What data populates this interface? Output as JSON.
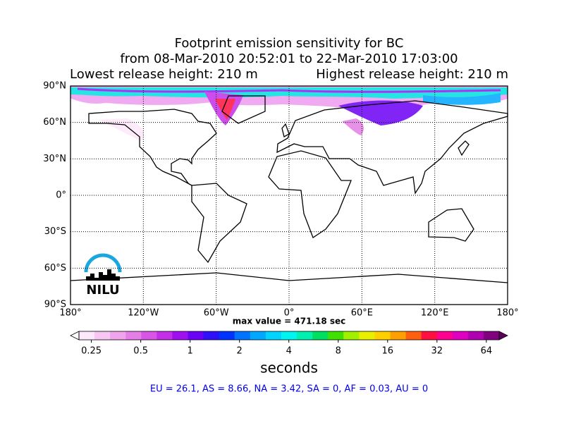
{
  "header": {
    "title": "Footprint emission sensitivity for BC",
    "period": "from 08-Mar-2010 20:52:01 to 22-Mar-2010 17:03:00",
    "lowest": "Lowest release height: 210 m",
    "highest": "Highest release height: 210 m"
  },
  "map": {
    "lat_lim": [
      -90,
      90
    ],
    "lon_lim": [
      -180,
      180
    ],
    "grid": true,
    "lat_ticks": [
      {
        "value": 90,
        "label": "90°N"
      },
      {
        "value": 60,
        "label": "60°N"
      },
      {
        "value": 30,
        "label": "30°N"
      },
      {
        "value": 0,
        "label": "0°"
      },
      {
        "value": -30,
        "label": "30°S"
      },
      {
        "value": -60,
        "label": "60°S"
      },
      {
        "value": -90,
        "label": "90°S"
      }
    ],
    "lon_ticks": [
      {
        "value": -180,
        "label": "180°"
      },
      {
        "value": -120,
        "label": "120°W"
      },
      {
        "value": -60,
        "label": "60°W"
      },
      {
        "value": 0,
        "label": "0°"
      },
      {
        "value": 60,
        "label": "60°E"
      },
      {
        "value": 120,
        "label": "120°E"
      },
      {
        "value": 180,
        "label": "180°"
      }
    ],
    "logo": "NILU",
    "max_value": "max value = 471.18 sec"
  },
  "colorbar": {
    "log": true,
    "lim": [
      0.21,
      76.6
    ],
    "ticks": [
      0.25,
      0.5,
      1,
      2,
      4,
      8,
      16,
      32,
      64
    ],
    "label": "seconds",
    "under_color": "#ffffff",
    "over_color": "#5c005c",
    "colors": [
      "#fde8fb",
      "#f7c6f2",
      "#f0a4ec",
      "#e57ee6",
      "#d756e6",
      "#c42ee8",
      "#9f10f0",
      "#6a00f5",
      "#2f10f8",
      "#0033ff",
      "#0073ff",
      "#00a8ff",
      "#00d4ff",
      "#00f5f0",
      "#00f0b0",
      "#00e060",
      "#40e000",
      "#a0f000",
      "#e8f000",
      "#ffd000",
      "#ffa000",
      "#ff6010",
      "#ff1040",
      "#ff0090",
      "#e000c0",
      "#b000b0",
      "#800080"
    ]
  },
  "footer": "EU = 26.1,  AS = 8.66,  NA = 3.42,  SA = 0,  AF = 0.03,  AU = 0"
}
